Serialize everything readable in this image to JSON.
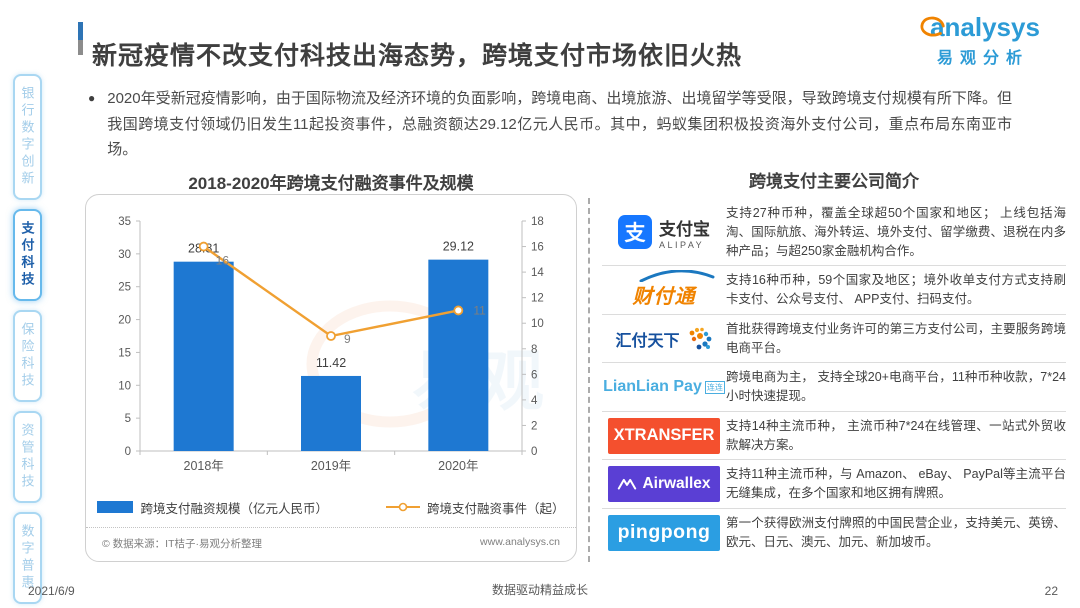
{
  "header": {
    "title": "新冠疫情不改支付科技出海态势，跨境支付市场依旧火热",
    "logo": {
      "brand": "analysys",
      "brand_cn": "易观分析"
    }
  },
  "sidebar": {
    "items": [
      {
        "label": "银行数字创新",
        "active": false
      },
      {
        "label": "支付科技",
        "active": true
      },
      {
        "label": "保险科技",
        "active": false
      },
      {
        "label": "资管科技",
        "active": false
      },
      {
        "label": "数字普惠",
        "active": false
      }
    ]
  },
  "summary": {
    "bullet": "●",
    "text": "2020年受新冠疫情影响，由于国际物流及经济环境的负面影响，跨境电商、出境旅游、出境留学等受限，导致跨境支付规模有所下降。但我国跨境支付领域仍旧发生11起投资事件，总融资额达29.12亿元人民币。其中，蚂蚁集团积极投资海外支付公司，重点布局东南亚市场。"
  },
  "chart_data": {
    "type": "bar",
    "title": "2018-2020年跨境支付融资事件及规模",
    "categories": [
      "2018年",
      "2019年",
      "2020年"
    ],
    "series": [
      {
        "name": "跨境支付融资规模（亿元人民币）",
        "type": "bar",
        "axis": "left",
        "values": [
          28.81,
          11.42,
          29.12
        ],
        "labels": [
          "28.81",
          "11.42",
          "29.12"
        ],
        "color": "#1e78d2"
      },
      {
        "name": "跨境支付融资事件（起）",
        "type": "line",
        "axis": "right",
        "values": [
          16,
          9,
          11
        ],
        "labels": [
          "16",
          "9",
          "11"
        ],
        "color": "#f0a032"
      }
    ],
    "left_axis": {
      "min": 0,
      "max": 35,
      "step": 5
    },
    "right_axis": {
      "min": 0,
      "max": 18,
      "step": 2
    },
    "legend_position": "bottom",
    "grid": false,
    "source": "© 数据来源：IT桔子·易观分析整理",
    "website": "www.analysys.cn"
  },
  "companies": {
    "title": "跨境支付主要公司简介",
    "rows": [
      {
        "name": "支付宝",
        "logo": {
          "mark": "支",
          "cn": "支付宝",
          "en": "ALIPAY"
        },
        "desc": "支持27种币种，覆盖全球超50个国家和地区； 上线包括海淘、国际航旅、海外转运、境外支付、留学缴费、退税在内多种产品；与超250家金融机构合作。"
      },
      {
        "name": "财付通",
        "logo": {
          "cn": "财付通"
        },
        "desc": "支持16种币种，59个国家及地区；境外收单支付方式支持刷卡支付、公众号支付、 APP支付、扫码支付。"
      },
      {
        "name": "汇付天下",
        "logo": {
          "cn": "汇付天下"
        },
        "desc": "首批获得跨境支付业务许可的第三方支付公司，主要服务跨境电商平台。"
      },
      {
        "name": "连连支付",
        "logo": {
          "en": "LianLian Pay",
          "tag": "连连"
        },
        "desc": "跨境电商为主， 支持全球20+电商平台，11种币种收款，7*24 小时快速提现。"
      },
      {
        "name": "XTransfer",
        "logo": {
          "en": "XTRANSFER"
        },
        "desc": "支持14种主流币种， 主流币种7*24在线管理、一站式外贸收款解决方案。"
      },
      {
        "name": "Airwallex",
        "logo": {
          "en": "Airwallex"
        },
        "desc": "支持11种主流币种，与 Amazon、 eBay、 PayPal等主流平台无缝集成，在多个国家和地区拥有牌照。"
      },
      {
        "name": "PingPong",
        "logo": {
          "en": "pingpong"
        },
        "desc": "第一个获得欧洲支付牌照的中国民营企业，支持美元、英镑、欧元、日元、澳元、加元、新加坡币。"
      }
    ]
  },
  "footer": {
    "date": "2021/6/9",
    "slogan": "数据驱动精益成长",
    "page": "22"
  }
}
